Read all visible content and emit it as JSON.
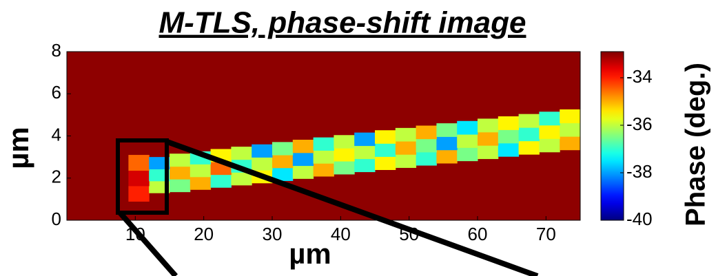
{
  "chart_data": {
    "type": "heatmap",
    "title": "M-TLS, phase-shift image",
    "xlabel": "µm",
    "ylabel": "µm",
    "colorbar_label": "Phase (deg.)",
    "xlim": [
      0,
      75
    ],
    "xticks": [
      10,
      20,
      30,
      40,
      50,
      60,
      70
    ],
    "ylim": [
      0,
      8
    ],
    "yticks": [
      0,
      2,
      4,
      6,
      8
    ],
    "clim": [
      -40,
      -32.9
    ],
    "cticks": [
      -34,
      -36,
      -38,
      -40
    ],
    "colormap": "jet",
    "background": -33,
    "x_edges": [
      9,
      12,
      15,
      18,
      21,
      24,
      27,
      30,
      33,
      36,
      39,
      42,
      45,
      48,
      51,
      54,
      57,
      60,
      63,
      66,
      69,
      72,
      75
    ],
    "y_low": [
      0.9,
      1.3,
      1.35,
      1.46,
      1.56,
      1.67,
      1.77,
      1.88,
      1.98,
      2.09,
      2.19,
      2.3,
      2.4,
      2.5,
      2.61,
      2.71,
      2.82,
      2.92,
      3.03,
      3.13,
      3.24,
      3.34
    ],
    "y_high": [
      3.1,
      3.0,
      3.16,
      3.27,
      3.38,
      3.49,
      3.6,
      3.71,
      3.82,
      3.93,
      4.04,
      4.16,
      4.27,
      4.38,
      4.49,
      4.6,
      4.71,
      4.82,
      4.93,
      5.04,
      5.15,
      5.26
    ],
    "z": [
      [
        -34,
        -36,
        -36.5,
        -35,
        -37,
        -36,
        -35.5,
        -37.5,
        -36,
        -35,
        -36.5,
        -37,
        -35.5,
        -36,
        -37,
        -35,
        -36.5,
        -36,
        -37.5,
        -35.5,
        -36,
        -35
      ],
      [
        -33.5,
        -37,
        -35,
        -36,
        -34.5,
        -37,
        -36,
        -35,
        -38,
        -36,
        -35.5,
        -36,
        -37,
        -35,
        -36.5,
        -38,
        -36,
        -35,
        -36.5,
        -37,
        -35.5,
        -36
      ],
      [
        -34.5,
        -38,
        -36,
        -37,
        -35.5,
        -36,
        -38,
        -36.5,
        -35,
        -37,
        -36,
        -38,
        -35.5,
        -36,
        -35,
        -36.5,
        -37.5,
        -36,
        -35.5,
        -36,
        -37,
        -35.5
      ]
    ]
  }
}
